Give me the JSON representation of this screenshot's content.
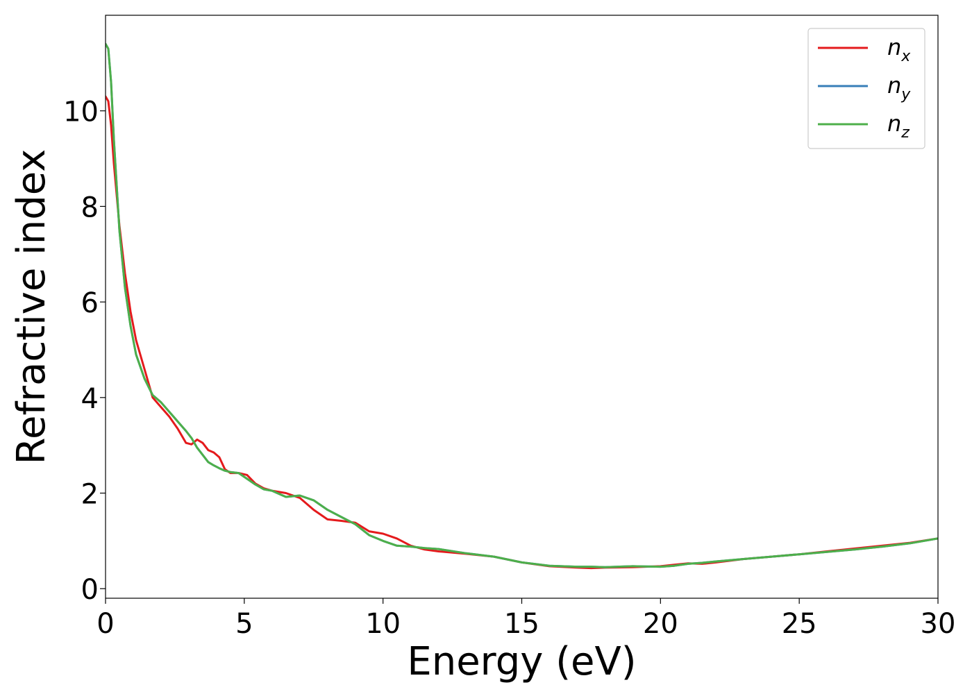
{
  "chart_data": {
    "type": "line",
    "title": "",
    "xlabel": "Energy (eV)",
    "ylabel": "Refractive index",
    "xlim": [
      0,
      30
    ],
    "ylim": [
      -0.2,
      12.0
    ],
    "xticks": [
      0,
      5,
      10,
      15,
      20,
      25,
      30
    ],
    "yticks": [
      0,
      2,
      4,
      6,
      8,
      10
    ],
    "grid": false,
    "legend_position": "top-right",
    "series": [
      {
        "name": "n",
        "subscript": "x",
        "color": "#e41a1c",
        "x": [
          0,
          0.1,
          0.2,
          0.3,
          0.5,
          0.7,
          0.9,
          1.1,
          1.4,
          1.7,
          2.0,
          2.3,
          2.6,
          2.9,
          3.1,
          3.3,
          3.5,
          3.7,
          3.9,
          4.1,
          4.3,
          4.5,
          4.8,
          5.1,
          5.4,
          5.7,
          6.0,
          6.5,
          7.0,
          7.5,
          8.0,
          8.5,
          9.0,
          9.5,
          10.0,
          10.5,
          11.0,
          11.5,
          12.0,
          13.0,
          14.0,
          15.0,
          16.0,
          17.0,
          17.5,
          18.0,
          19.0,
          20.0,
          20.5,
          21.0,
          21.5,
          22.0,
          23.0,
          24.0,
          25.0,
          26.0,
          27.0,
          28.0,
          29.0,
          30.0
        ],
        "y": [
          10.3,
          10.2,
          9.7,
          8.9,
          7.6,
          6.6,
          5.8,
          5.2,
          4.6,
          4.0,
          3.8,
          3.6,
          3.35,
          3.05,
          3.02,
          3.12,
          3.05,
          2.9,
          2.85,
          2.75,
          2.5,
          2.42,
          2.42,
          2.38,
          2.2,
          2.1,
          2.05,
          2.0,
          1.9,
          1.65,
          1.45,
          1.42,
          1.38,
          1.2,
          1.15,
          1.05,
          0.9,
          0.82,
          0.78,
          0.73,
          0.67,
          0.55,
          0.47,
          0.44,
          0.43,
          0.44,
          0.45,
          0.47,
          0.5,
          0.53,
          0.52,
          0.55,
          0.62,
          0.67,
          0.72,
          0.78,
          0.84,
          0.9,
          0.96,
          1.05
        ]
      },
      {
        "name": "n",
        "subscript": "y",
        "color": "#377eb8",
        "x": [
          0,
          0.1,
          0.2,
          0.3,
          0.5,
          0.7,
          0.9,
          1.1,
          1.4,
          1.7,
          2.0,
          2.3,
          2.6,
          2.9,
          3.1,
          3.3,
          3.5,
          3.7,
          3.9,
          4.1,
          4.3,
          4.5,
          4.8,
          5.1,
          5.4,
          5.7,
          6.0,
          6.5,
          7.0,
          7.5,
          8.0,
          8.5,
          9.0,
          9.5,
          10.0,
          10.5,
          11.0,
          11.5,
          12.0,
          13.0,
          14.0,
          15.0,
          16.0,
          17.0,
          17.5,
          18.0,
          19.0,
          20.0,
          20.5,
          21.0,
          21.5,
          22.0,
          23.0,
          24.0,
          25.0,
          26.0,
          27.0,
          28.0,
          29.0,
          30.0
        ],
        "y": [
          11.4,
          11.3,
          10.6,
          9.4,
          7.5,
          6.3,
          5.5,
          4.9,
          4.4,
          4.05,
          3.9,
          3.7,
          3.5,
          3.3,
          3.15,
          2.95,
          2.8,
          2.65,
          2.58,
          2.52,
          2.47,
          2.44,
          2.42,
          2.3,
          2.18,
          2.08,
          2.05,
          1.92,
          1.95,
          1.85,
          1.65,
          1.5,
          1.35,
          1.12,
          1.0,
          0.9,
          0.88,
          0.85,
          0.83,
          0.74,
          0.67,
          0.55,
          0.48,
          0.46,
          0.46,
          0.45,
          0.47,
          0.46,
          0.48,
          0.52,
          0.54,
          0.57,
          0.62,
          0.67,
          0.72,
          0.77,
          0.82,
          0.88,
          0.95,
          1.05
        ]
      },
      {
        "name": "n",
        "subscript": "z",
        "color": "#4daf4a",
        "x": [
          0,
          0.1,
          0.2,
          0.3,
          0.5,
          0.7,
          0.9,
          1.1,
          1.4,
          1.7,
          2.0,
          2.3,
          2.6,
          2.9,
          3.1,
          3.3,
          3.5,
          3.7,
          3.9,
          4.1,
          4.3,
          4.5,
          4.8,
          5.1,
          5.4,
          5.7,
          6.0,
          6.5,
          7.0,
          7.5,
          8.0,
          8.5,
          9.0,
          9.5,
          10.0,
          10.5,
          11.0,
          11.5,
          12.0,
          13.0,
          14.0,
          15.0,
          16.0,
          17.0,
          17.5,
          18.0,
          19.0,
          20.0,
          20.5,
          21.0,
          21.5,
          22.0,
          23.0,
          24.0,
          25.0,
          26.0,
          27.0,
          28.0,
          29.0,
          30.0
        ],
        "y": [
          11.4,
          11.3,
          10.6,
          9.4,
          7.5,
          6.3,
          5.5,
          4.9,
          4.4,
          4.05,
          3.9,
          3.7,
          3.5,
          3.3,
          3.15,
          2.95,
          2.8,
          2.65,
          2.58,
          2.52,
          2.47,
          2.44,
          2.42,
          2.3,
          2.18,
          2.08,
          2.05,
          1.92,
          1.95,
          1.85,
          1.65,
          1.5,
          1.35,
          1.12,
          1.0,
          0.9,
          0.88,
          0.85,
          0.83,
          0.74,
          0.67,
          0.55,
          0.48,
          0.46,
          0.46,
          0.45,
          0.47,
          0.46,
          0.48,
          0.52,
          0.54,
          0.57,
          0.62,
          0.67,
          0.72,
          0.77,
          0.82,
          0.88,
          0.95,
          1.05
        ]
      }
    ]
  }
}
